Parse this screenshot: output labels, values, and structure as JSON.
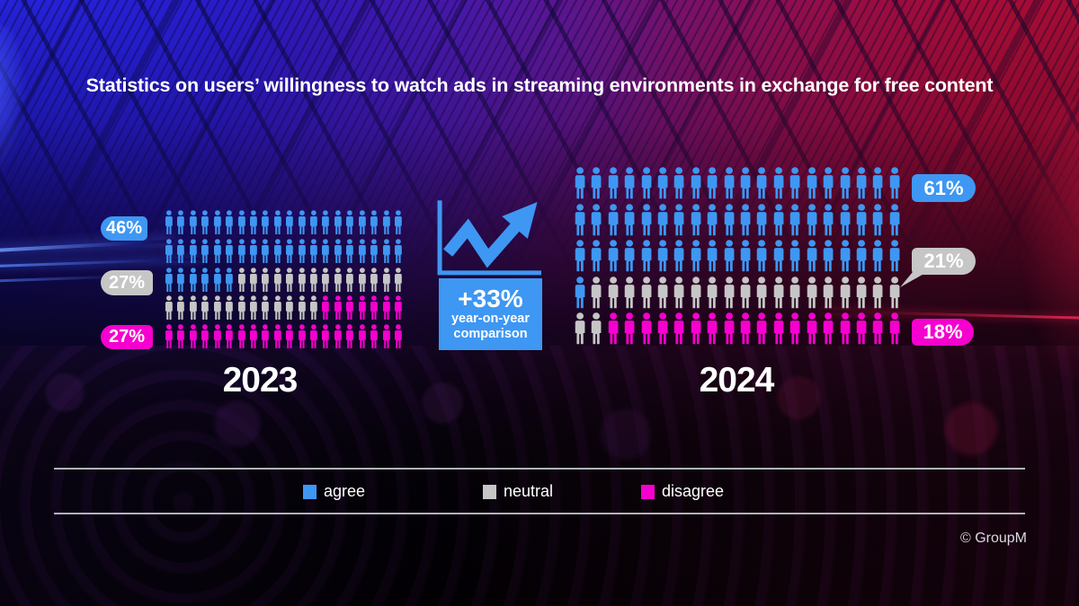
{
  "title": "Statistics on users’ willingness to watch ads in streaming environments in exchange for free content",
  "watermark": "© GroupM",
  "comparison": {
    "headline": "+33%",
    "line1": "year-on-year",
    "line2": "comparison"
  },
  "legend": {
    "items": [
      {
        "name": "agree",
        "label": "agree"
      },
      {
        "name": "neutral",
        "label": "neutral"
      },
      {
        "name": "disagree",
        "label": "disagree"
      }
    ]
  },
  "chart_data": {
    "type": "pictograph",
    "title": "Statistics on users’ willingness to watch ads in streaming environments in exchange for free content",
    "unit": "percent (each person icon = 1%)",
    "icons_per_group": 100,
    "icons_per_row": 20,
    "legend_position": "bottom",
    "colors": {
      "agree": "#3E97F2",
      "neutral": "#C6C6C6",
      "disagree": "#F500CE"
    },
    "groups": [
      {
        "label": "2023",
        "series": [
          {
            "name": "agree",
            "value": 46
          },
          {
            "name": "neutral",
            "value": 27
          },
          {
            "name": "disagree",
            "value": 27
          }
        ]
      },
      {
        "label": "2024",
        "series": [
          {
            "name": "agree",
            "value": 61
          },
          {
            "name": "neutral",
            "value": 21
          },
          {
            "name": "disagree",
            "value": 18
          }
        ]
      }
    ],
    "comparison_note": "+33% year-on-year comparison"
  }
}
